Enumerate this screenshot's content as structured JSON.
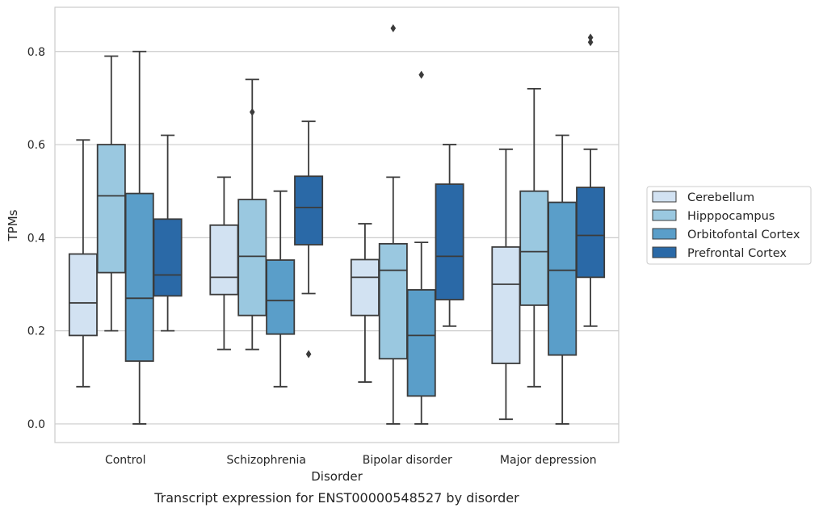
{
  "chart_data": {
    "type": "boxplot",
    "title": "",
    "caption": "Transcript expression for ENST00000548527 by disorder",
    "xlabel": "Disorder",
    "ylabel": "TPMs",
    "ylim": [
      -0.04,
      0.895
    ],
    "yticks": [
      "0.0",
      "0.2",
      "0.4",
      "0.6",
      "0.8"
    ],
    "ytick_values": [
      0.0,
      0.2,
      0.4,
      0.6,
      0.8
    ],
    "grid": "horizontal",
    "legend_position": "right",
    "categories": [
      "Control",
      "Schizophrenia",
      "Bipolar disorder",
      "Major depression"
    ],
    "series": [
      {
        "name": "Cerebellum",
        "color": "#d2e2f2",
        "boxes": [
          {
            "whisker_low": 0.08,
            "q1": 0.19,
            "median": 0.26,
            "q3": 0.365,
            "whisker_high": 0.61,
            "outliers": []
          },
          {
            "whisker_low": 0.16,
            "q1": 0.278,
            "median": 0.315,
            "q3": 0.427,
            "whisker_high": 0.53,
            "outliers": []
          },
          {
            "whisker_low": 0.09,
            "q1": 0.233,
            "median": 0.315,
            "q3": 0.353,
            "whisker_high": 0.43,
            "outliers": []
          },
          {
            "whisker_low": 0.01,
            "q1": 0.13,
            "median": 0.3,
            "q3": 0.38,
            "whisker_high": 0.59,
            "outliers": []
          }
        ]
      },
      {
        "name": "Hipppocampus",
        "color": "#9ac8e0",
        "boxes": [
          {
            "whisker_low": 0.2,
            "q1": 0.325,
            "median": 0.49,
            "q3": 0.6,
            "whisker_high": 0.79,
            "outliers": []
          },
          {
            "whisker_low": 0.16,
            "q1": 0.233,
            "median": 0.36,
            "q3": 0.482,
            "whisker_high": 0.74,
            "outliers": [
              0.67
            ]
          },
          {
            "whisker_low": 0.0,
            "q1": 0.14,
            "median": 0.33,
            "q3": 0.387,
            "whisker_high": 0.53,
            "outliers": [
              0.85
            ]
          },
          {
            "whisker_low": 0.08,
            "q1": 0.255,
            "median": 0.37,
            "q3": 0.5,
            "whisker_high": 0.72,
            "outliers": []
          }
        ]
      },
      {
        "name": "Orbitofontal Cortex",
        "color": "#5a9ec9",
        "boxes": [
          {
            "whisker_low": 0.0,
            "q1": 0.135,
            "median": 0.27,
            "q3": 0.495,
            "whisker_high": 0.8,
            "outliers": []
          },
          {
            "whisker_low": 0.08,
            "q1": 0.193,
            "median": 0.265,
            "q3": 0.352,
            "whisker_high": 0.5,
            "outliers": []
          },
          {
            "whisker_low": 0.0,
            "q1": 0.06,
            "median": 0.19,
            "q3": 0.288,
            "whisker_high": 0.39,
            "outliers": [
              0.75
            ]
          },
          {
            "whisker_low": 0.0,
            "q1": 0.148,
            "median": 0.33,
            "q3": 0.476,
            "whisker_high": 0.62,
            "outliers": []
          }
        ]
      },
      {
        "name": "Prefrontal Cortex",
        "color": "#2a69a7",
        "boxes": [
          {
            "whisker_low": 0.2,
            "q1": 0.275,
            "median": 0.32,
            "q3": 0.44,
            "whisker_high": 0.62,
            "outliers": []
          },
          {
            "whisker_low": 0.28,
            "q1": 0.385,
            "median": 0.465,
            "q3": 0.532,
            "whisker_high": 0.65,
            "outliers": [
              0.15
            ]
          },
          {
            "whisker_low": 0.21,
            "q1": 0.267,
            "median": 0.36,
            "q3": 0.515,
            "whisker_high": 0.6,
            "outliers": []
          },
          {
            "whisker_low": 0.21,
            "q1": 0.315,
            "median": 0.405,
            "q3": 0.508,
            "whisker_high": 0.59,
            "outliers": [
              0.82,
              0.83
            ]
          }
        ]
      }
    ]
  },
  "colors": {
    "edge": "#3b3b3b",
    "grid": "#cccccc",
    "frame": "#cccccc",
    "text": "#262626"
  }
}
